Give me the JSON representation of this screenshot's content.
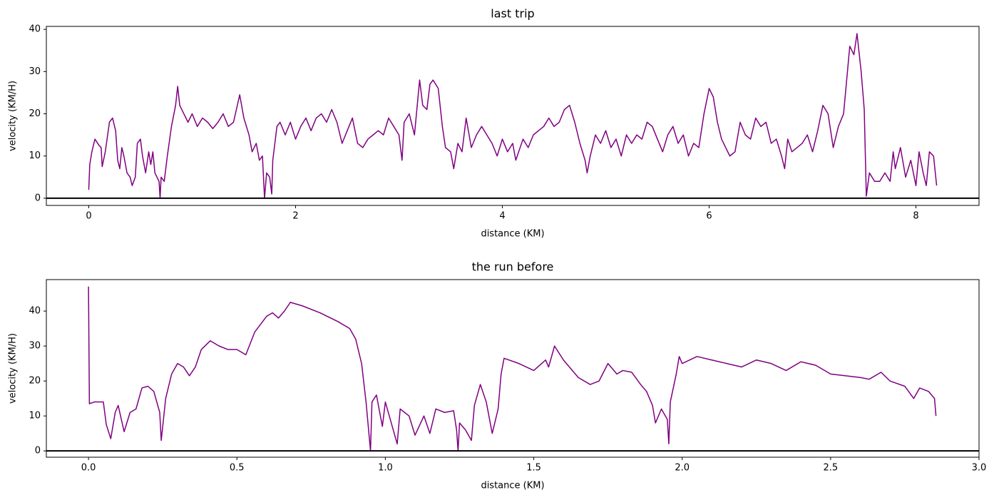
{
  "chart_data": [
    {
      "type": "line",
      "title": "last trip",
      "xlabel": "distance (KM)",
      "ylabel": "velocity (KM/H)",
      "color": "#800080",
      "hline": 0,
      "xlim": [
        -0.41,
        8.61
      ],
      "ylim": [
        -1.7,
        40.7
      ],
      "xticks": [
        0,
        2,
        4,
        6,
        8
      ],
      "yticks": [
        0,
        10,
        20,
        30,
        40
      ],
      "x": [
        0,
        0.01,
        0.03,
        0.06,
        0.1,
        0.12,
        0.13,
        0.16,
        0.2,
        0.23,
        0.26,
        0.28,
        0.3,
        0.32,
        0.34,
        0.37,
        0.4,
        0.42,
        0.45,
        0.47,
        0.5,
        0.52,
        0.55,
        0.58,
        0.6,
        0.62,
        0.64,
        0.66,
        0.68,
        0.69,
        0.7,
        0.73,
        0.76,
        0.8,
        0.84,
        0.86,
        0.88,
        0.92,
        0.96,
        1.0,
        1.05,
        1.1,
        1.15,
        1.2,
        1.25,
        1.3,
        1.35,
        1.4,
        1.46,
        1.5,
        1.55,
        1.58,
        1.62,
        1.65,
        1.68,
        1.7,
        1.72,
        1.75,
        1.77,
        1.78,
        1.82,
        1.85,
        1.9,
        1.95,
        2.0,
        2.05,
        2.1,
        2.15,
        2.2,
        2.25,
        2.3,
        2.35,
        2.4,
        2.45,
        2.5,
        2.55,
        2.6,
        2.65,
        2.7,
        2.75,
        2.8,
        2.85,
        2.9,
        2.95,
        3.0,
        3.03,
        3.05,
        3.1,
        3.15,
        3.2,
        3.23,
        3.27,
        3.3,
        3.33,
        3.38,
        3.42,
        3.45,
        3.5,
        3.53,
        3.57,
        3.61,
        3.65,
        3.7,
        3.75,
        3.8,
        3.85,
        3.9,
        3.95,
        4.0,
        4.05,
        4.1,
        4.13,
        4.2,
        4.25,
        4.3,
        4.35,
        4.4,
        4.45,
        4.5,
        4.55,
        4.6,
        4.65,
        4.7,
        4.75,
        4.8,
        4.82,
        4.85,
        4.9,
        4.95,
        5.0,
        5.05,
        5.1,
        5.15,
        5.2,
        5.25,
        5.3,
        5.35,
        5.4,
        5.45,
        5.5,
        5.55,
        5.6,
        5.65,
        5.7,
        5.75,
        5.8,
        5.85,
        5.9,
        5.95,
        6.0,
        6.04,
        6.08,
        6.12,
        6.16,
        6.2,
        6.25,
        6.3,
        6.35,
        6.4,
        6.45,
        6.5,
        6.55,
        6.6,
        6.65,
        6.7,
        6.73,
        6.76,
        6.8,
        6.85,
        6.9,
        6.95,
        7.0,
        7.05,
        7.1,
        7.15,
        7.2,
        7.25,
        7.3,
        7.33,
        7.36,
        7.4,
        7.43,
        7.47,
        7.5,
        7.52,
        7.55,
        7.6,
        7.65,
        7.7,
        7.75,
        7.78,
        7.8,
        7.85,
        7.9,
        7.95,
        8.0,
        8.03,
        8.07,
        8.1,
        8.13,
        8.17,
        8.2
      ],
      "values": [
        2,
        8,
        11,
        14,
        12.5,
        12,
        7.5,
        11,
        18,
        19,
        16,
        9,
        7,
        12,
        10,
        6,
        5,
        3,
        5,
        13,
        14,
        10,
        6,
        11,
        8,
        11,
        6,
        5,
        4,
        0,
        5,
        4,
        10,
        17,
        22,
        26.5,
        22,
        20,
        18,
        20,
        17,
        19,
        18,
        16.5,
        18,
        20,
        17,
        18,
        24.5,
        19,
        15,
        11,
        13,
        9,
        10,
        0,
        6,
        5,
        1,
        9,
        17,
        18,
        15,
        18,
        14,
        17,
        19,
        16,
        19,
        20,
        18,
        21,
        18,
        13,
        16,
        19,
        13,
        12,
        14,
        15,
        16,
        15,
        19,
        17,
        15,
        9,
        18,
        20,
        15,
        28,
        22,
        21,
        27,
        28,
        26,
        17,
        12,
        11,
        7,
        13,
        11,
        19,
        12,
        15,
        17,
        15,
        13,
        10,
        14,
        11,
        13,
        9,
        14,
        12,
        15,
        16,
        17,
        19,
        17,
        18,
        21,
        22,
        18,
        13,
        9,
        6,
        10,
        15,
        13,
        16,
        12,
        14,
        10,
        15,
        13,
        15,
        14,
        18,
        17,
        14,
        11,
        15,
        17,
        13,
        15,
        10,
        13,
        12,
        20,
        26,
        24,
        18,
        14,
        12,
        10,
        11,
        18,
        15,
        14,
        19,
        17,
        18,
        13,
        14,
        10,
        7,
        14,
        11,
        12,
        13,
        15,
        11,
        16,
        22,
        20,
        12,
        17,
        20,
        28,
        36,
        34,
        39,
        30,
        21,
        0.5,
        6,
        4,
        4,
        6,
        4,
        11,
        7,
        12,
        5,
        9,
        3,
        11,
        6,
        3,
        11,
        10,
        3
      ]
    },
    {
      "type": "line",
      "title": "the run before",
      "xlabel": "distance (KM)",
      "ylabel": "velocity (KM/H)",
      "color": "#800080",
      "hline": 0,
      "xlim": [
        -0.142,
        3.0
      ],
      "ylim": [
        -1.8,
        49
      ],
      "xticks": [
        {
          "value": 0,
          "label": "0.0"
        },
        0.5,
        {
          "value": 1,
          "label": "1.0"
        },
        1.5,
        {
          "value": 2,
          "label": "2.0"
        },
        2.5,
        {
          "value": 3,
          "label": "3.0"
        }
      ],
      "yticks": [
        0,
        10,
        20,
        30,
        40
      ],
      "x": [
        0,
        0.003,
        0.02,
        0.05,
        0.06,
        0.075,
        0.09,
        0.1,
        0.12,
        0.14,
        0.16,
        0.18,
        0.2,
        0.22,
        0.24,
        0.245,
        0.26,
        0.28,
        0.3,
        0.32,
        0.34,
        0.36,
        0.38,
        0.41,
        0.44,
        0.47,
        0.5,
        0.53,
        0.56,
        0.6,
        0.62,
        0.64,
        0.66,
        0.68,
        0.72,
        0.78,
        0.84,
        0.88,
        0.9,
        0.92,
        0.935,
        0.95,
        0.955,
        0.97,
        0.99,
        1.0,
        1.03,
        1.04,
        1.05,
        1.08,
        1.1,
        1.13,
        1.15,
        1.17,
        1.2,
        1.23,
        1.24,
        1.245,
        1.25,
        1.27,
        1.29,
        1.3,
        1.32,
        1.34,
        1.36,
        1.38,
        1.39,
        1.4,
        1.45,
        1.5,
        1.54,
        1.55,
        1.57,
        1.6,
        1.65,
        1.69,
        1.72,
        1.75,
        1.78,
        1.8,
        1.83,
        1.86,
        1.88,
        1.9,
        1.91,
        1.93,
        1.95,
        1.955,
        1.96,
        1.98,
        1.99,
        2.0,
        2.05,
        2.1,
        2.15,
        2.2,
        2.25,
        2.3,
        2.35,
        2.4,
        2.45,
        2.5,
        2.6,
        2.63,
        2.67,
        2.7,
        2.75,
        2.78,
        2.8,
        2.83,
        2.85,
        2.855
      ],
      "values": [
        47,
        13.5,
        14,
        14,
        7.5,
        3.5,
        11,
        13,
        5.5,
        11,
        12,
        18,
        18.5,
        17,
        11,
        3,
        15,
        22,
        25,
        24,
        21.5,
        24,
        29,
        31.5,
        30,
        29,
        29,
        27.5,
        34,
        38.5,
        39.5,
        38,
        40,
        42.5,
        41.5,
        39.5,
        37,
        35,
        32,
        25,
        14,
        0,
        14,
        16,
        7,
        14,
        5,
        2,
        12,
        10,
        4.5,
        10,
        5,
        12,
        11,
        11.5,
        6,
        0,
        8,
        6,
        3,
        13,
        19,
        14,
        5,
        12,
        22,
        26.5,
        25,
        23,
        26,
        24,
        30,
        26,
        21,
        19,
        20,
        25,
        22,
        23,
        22.5,
        19,
        17,
        13,
        8,
        12,
        9,
        2,
        14,
        22,
        27,
        25,
        27,
        26,
        25,
        24,
        26,
        25,
        23,
        25.5,
        24.5,
        22,
        21,
        20.5,
        22.5,
        20,
        18.5,
        15,
        18,
        17,
        15,
        10
      ]
    }
  ]
}
